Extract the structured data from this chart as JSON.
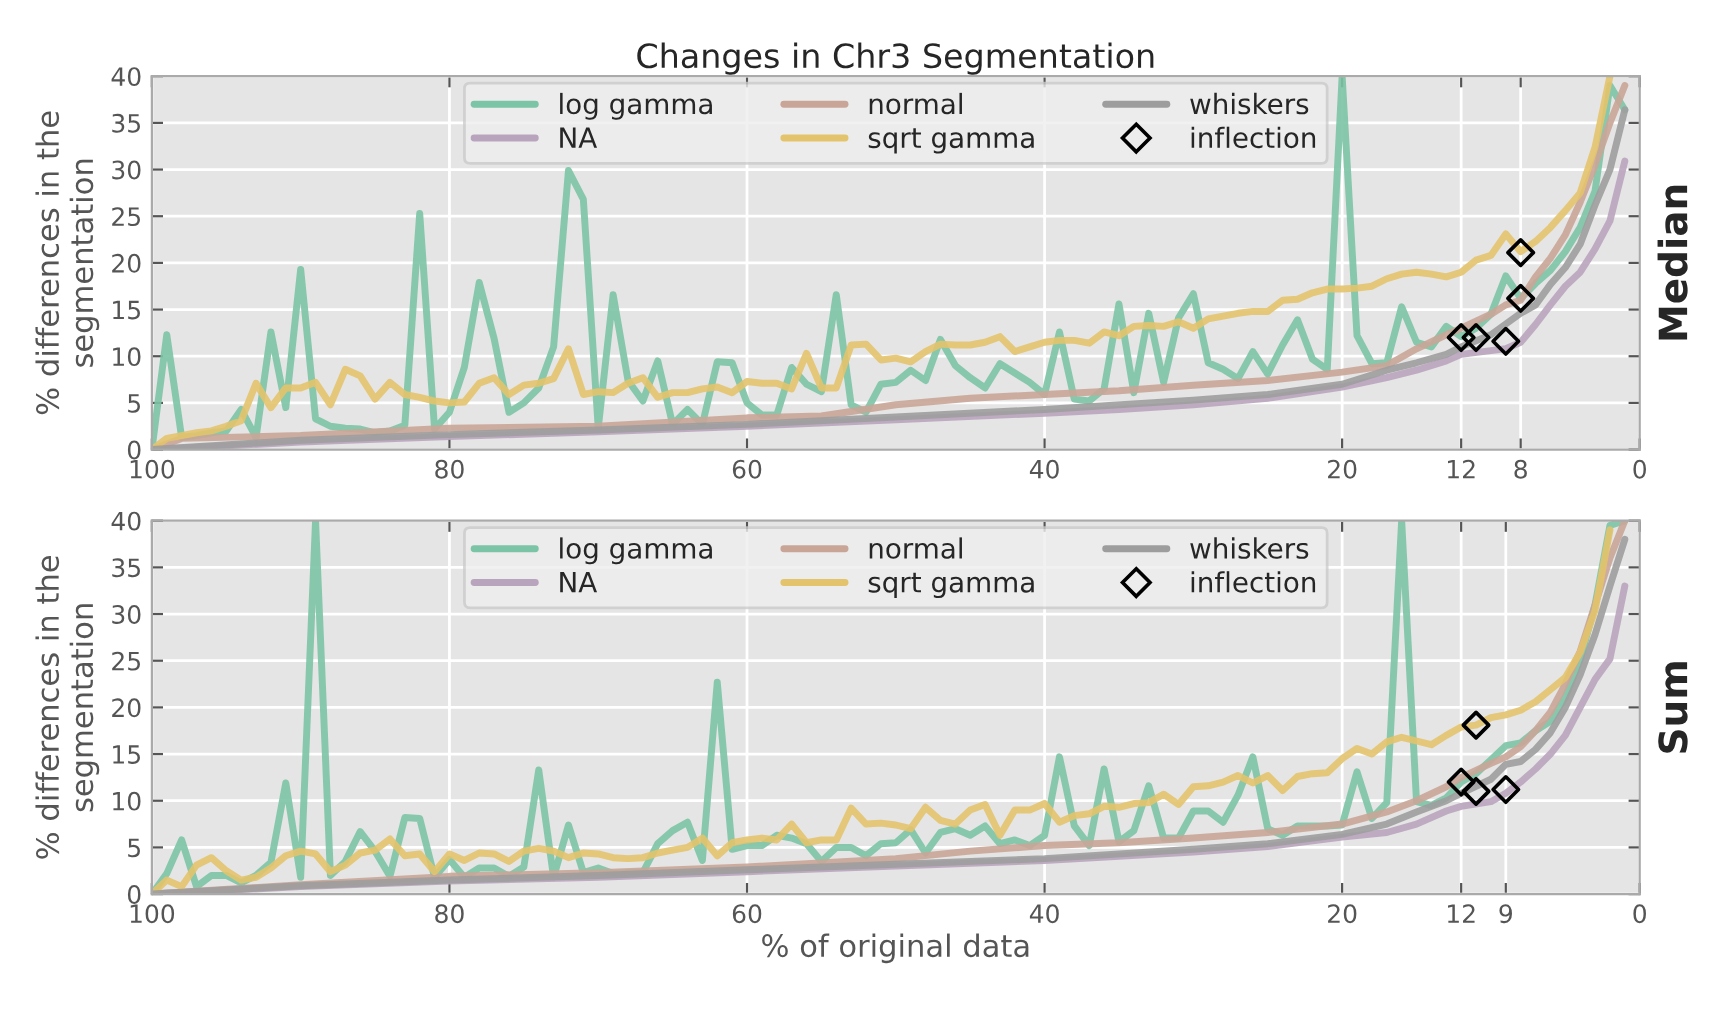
{
  "chart_data": [
    {
      "type": "line",
      "title": "Changes in Chr3 Segmentation",
      "ylabel": "% differences in the\nsegmentation",
      "annotations": [
        "Median"
      ],
      "xlim": [
        100,
        0
      ],
      "xticks": [
        100,
        80,
        60,
        40,
        20,
        12,
        8,
        0
      ],
      "ylim": [
        0,
        40
      ],
      "yticks": [
        0,
        5,
        10,
        15,
        20,
        25,
        30,
        35,
        40
      ],
      "grid": true,
      "legend": "top",
      "series": [
        {
          "name": "log gamma",
          "color": "#7cc4a6",
          "x": [
            100,
            99,
            98,
            97,
            96,
            95,
            94,
            93,
            92,
            91,
            90,
            89,
            88,
            87,
            86,
            85,
            84,
            83,
            82,
            81,
            80,
            79,
            78,
            77,
            76,
            75,
            74,
            73,
            72,
            71,
            70,
            69,
            68,
            67,
            66,
            65,
            64,
            63,
            62,
            61,
            60,
            59,
            58,
            57,
            56,
            55,
            54,
            53,
            52,
            51,
            50,
            49,
            48,
            47,
            46,
            45,
            44,
            43,
            42,
            41,
            40,
            39,
            38,
            37,
            36,
            35,
            34,
            33,
            32,
            31,
            30,
            29,
            28,
            27,
            26,
            25,
            24,
            23,
            22,
            21,
            20,
            19,
            18,
            17,
            16,
            15,
            14,
            13,
            12,
            11,
            10,
            9,
            8,
            7,
            6,
            5,
            4,
            3,
            2,
            1
          ],
          "values": [
            0,
            12.3,
            1.3,
            1.5,
            1.8,
            2,
            4.3,
            1.3,
            12.6,
            4.5,
            19.3,
            3.3,
            2.5,
            2.3,
            2.2,
            1.8,
            2,
            2.6,
            25.3,
            2.2,
            4,
            8.8,
            17.9,
            11.9,
            4,
            5,
            6.6,
            11,
            29.9,
            26.8,
            2.3,
            16.6,
            7.4,
            5.2,
            9.5,
            2.7,
            4.3,
            2.7,
            9.4,
            9.3,
            5,
            3.7,
            3.7,
            8.8,
            7,
            6.2,
            16.6,
            4.8,
            4,
            7,
            7.2,
            8.5,
            7.4,
            11.8,
            9,
            7.7,
            6.6,
            9.2,
            8.2,
            7.2,
            5.9,
            12.6,
            5.4,
            5.2,
            6.5,
            15.6,
            6.1,
            14.6,
            7.2,
            14.1,
            16.7,
            9.3,
            8.6,
            7.6,
            10.5,
            8.1,
            11.2,
            13.9,
            9.7,
            8.6,
            40,
            12.2,
            9.2,
            9.3,
            15.3,
            11.5,
            11,
            13.2,
            12.1,
            13,
            14.5,
            18.6,
            16.2,
            17.8,
            19.2,
            21.2,
            23.8,
            27.7,
            39,
            36.4
          ]
        },
        {
          "name": "NA",
          "color": "#b9a4be",
          "x": [
            100,
            90,
            80,
            70,
            60,
            50,
            40,
            35,
            30,
            25,
            20,
            17,
            15,
            13,
            12,
            10,
            9,
            8,
            7,
            6,
            5,
            4,
            3,
            2,
            1
          ],
          "values": [
            0,
            0.8,
            1.4,
            1.9,
            2.5,
            3.2,
            3.9,
            4.3,
            4.8,
            5.5,
            6.7,
            7.7,
            8.5,
            9.5,
            10.2,
            10.6,
            10.8,
            11.5,
            13.4,
            15.5,
            17.5,
            19,
            21.5,
            24.5,
            30.9
          ]
        },
        {
          "name": "normal",
          "color": "#c9a597",
          "x": [
            100,
            98,
            90,
            80,
            70,
            60,
            55,
            50,
            45,
            40,
            35,
            30,
            25,
            20,
            17,
            15,
            13,
            12,
            10,
            9,
            8,
            7,
            6,
            5,
            4,
            3,
            2,
            1
          ],
          "values": [
            0,
            1.2,
            1.5,
            2.3,
            2.5,
            3.4,
            3.6,
            4.8,
            5.5,
            5.9,
            6.3,
            6.9,
            7.4,
            8.3,
            9,
            10.8,
            12.3,
            13,
            14.5,
            15.5,
            16,
            18.5,
            20.5,
            23,
            26.5,
            30.5,
            35,
            39
          ]
        },
        {
          "name": "sqrt gamma",
          "color": "#e3c36c",
          "x": [
            100,
            99,
            98,
            97,
            96,
            95,
            94,
            93,
            92,
            91,
            90,
            89,
            88,
            87,
            86,
            85,
            84,
            83,
            82,
            81,
            80,
            79,
            78,
            77,
            76,
            75,
            74,
            73,
            72,
            71,
            70,
            69,
            68,
            67,
            66,
            65,
            64,
            63,
            62,
            61,
            60,
            59,
            58,
            57,
            56,
            55,
            54,
            53,
            52,
            51,
            50,
            49,
            48,
            47,
            46,
            45,
            44,
            43,
            42,
            41,
            40,
            39,
            38,
            37,
            36,
            35,
            34,
            33,
            32,
            31,
            30,
            29,
            28,
            27,
            26,
            25,
            24,
            23,
            22,
            21,
            20,
            19,
            18,
            17,
            16,
            15,
            14,
            13,
            12,
            11,
            10,
            9,
            8,
            7,
            6,
            5,
            4,
            3,
            2
          ],
          "values": [
            0,
            1.2,
            1.5,
            1.8,
            2,
            2.5,
            3.1,
            7.1,
            4.5,
            6.6,
            6.6,
            7.2,
            4.8,
            8.6,
            7.9,
            5.4,
            7.2,
            5.9,
            5.6,
            5.2,
            5,
            5.1,
            7.1,
            7.7,
            5.9,
            6.9,
            7.1,
            7.6,
            10.8,
            5.9,
            6.2,
            6.1,
            7.1,
            7.7,
            5.6,
            6.1,
            6.1,
            6.5,
            6.7,
            6.1,
            7.3,
            7.1,
            7.1,
            6.5,
            10.3,
            6.6,
            6.6,
            11.2,
            11.3,
            9.6,
            9.8,
            9.4,
            10.5,
            11.3,
            11.2,
            11.2,
            11.5,
            12.1,
            10.5,
            11,
            11.5,
            11.7,
            11.7,
            11.4,
            12.6,
            12.2,
            13.2,
            13.3,
            13.2,
            13.7,
            13,
            14,
            14.3,
            14.6,
            14.8,
            14.8,
            16,
            16.1,
            16.8,
            17.2,
            17.2,
            17.3,
            17.5,
            18.3,
            18.8,
            19,
            18.8,
            18.5,
            19,
            20.3,
            20.8,
            23.1,
            21.2,
            22.3,
            23.8,
            25.6,
            27.5,
            32.4,
            40
          ]
        },
        {
          "name": "whiskers",
          "color": "#9d9d9d",
          "x": [
            100,
            90,
            80,
            70,
            60,
            50,
            40,
            30,
            25,
            20,
            17,
            15,
            13,
            12,
            10,
            8,
            7,
            6,
            5,
            4,
            3,
            2,
            1
          ],
          "values": [
            0,
            1,
            1.6,
            2.1,
            2.7,
            3.5,
            4.3,
            5.3,
            5.9,
            7,
            8.5,
            9.3,
            10.2,
            11,
            12.3,
            14.6,
            15.5,
            17.7,
            19.5,
            22,
            26.2,
            30,
            36.4
          ]
        },
        {
          "name": "inflection",
          "type": "scatter",
          "marker": "diamond",
          "color": "#000000",
          "x": [
            12,
            11,
            9,
            8,
            8
          ],
          "values": [
            12,
            12,
            11.6,
            21.1,
            16.2
          ]
        }
      ]
    },
    {
      "type": "line",
      "xlabel": "% of original data",
      "ylabel": "% differences in the\nsegmentation",
      "annotations": [
        "Sum"
      ],
      "xlim": [
        100,
        0
      ],
      "xticks": [
        100,
        80,
        60,
        40,
        20,
        12,
        9,
        0
      ],
      "ylim": [
        0,
        40
      ],
      "yticks": [
        0,
        5,
        10,
        15,
        20,
        25,
        30,
        35,
        40
      ],
      "grid": true,
      "legend": "top",
      "series": [
        {
          "name": "log gamma",
          "color": "#7cc4a6",
          "x": [
            100,
            99,
            98,
            97,
            96,
            95,
            94,
            93,
            92,
            91,
            90,
            89,
            88,
            87,
            86,
            85,
            84,
            83,
            82,
            81,
            80,
            79,
            78,
            77,
            76,
            75,
            74,
            73,
            72,
            71,
            70,
            69,
            68,
            67,
            66,
            65,
            64,
            63,
            62,
            61,
            60,
            59,
            58,
            57,
            56,
            55,
            54,
            53,
            52,
            51,
            50,
            49,
            48,
            47,
            46,
            45,
            44,
            43,
            42,
            41,
            40,
            39,
            38,
            37,
            36,
            35,
            34,
            33,
            32,
            31,
            30,
            29,
            28,
            27,
            26,
            25,
            24,
            23,
            22,
            21,
            20,
            19,
            18,
            17,
            16,
            15,
            14,
            13,
            12,
            11,
            10,
            9,
            8,
            7,
            6,
            5,
            4,
            3,
            2,
            1
          ],
          "values": [
            0,
            2.2,
            5.8,
            0.8,
            2,
            2,
            1.2,
            2,
            3.4,
            11.9,
            1.8,
            40,
            2,
            3.5,
            6.7,
            4.6,
            1.9,
            8.2,
            8.1,
            1.8,
            3.7,
            1.8,
            2.8,
            2.8,
            1.9,
            2.9,
            13.3,
            1.8,
            7.4,
            2.3,
            2.8,
            2.2,
            2.3,
            2.3,
            5.4,
            6.8,
            7.7,
            3.6,
            22.7,
            4.8,
            5.2,
            5.2,
            6.3,
            6,
            5.4,
            3.5,
            5,
            5,
            4.1,
            5.4,
            5.5,
            6.9,
            4.4,
            6.6,
            7,
            6.3,
            7.3,
            5.4,
            5.8,
            5.2,
            6.3,
            14.7,
            7.3,
            5.2,
            13.4,
            5.6,
            6.8,
            11.6,
            6,
            6,
            8.9,
            8.9,
            7.7,
            10.6,
            14.7,
            7,
            6.3,
            7.3,
            7.3,
            7.3,
            7.4,
            13.1,
            8.1,
            9.8,
            40,
            9.9,
            9.5,
            10.3,
            12,
            12.9,
            14.4,
            15.9,
            16.2,
            17.5,
            18.5,
            21.1,
            25.1,
            31,
            39.5,
            40
          ]
        },
        {
          "name": "NA",
          "color": "#b9a4be",
          "x": [
            100,
            90,
            80,
            70,
            60,
            50,
            40,
            30,
            25,
            20,
            17,
            15,
            13,
            12,
            10,
            9,
            8,
            7,
            6,
            5,
            4,
            3,
            2,
            1
          ],
          "values": [
            0,
            0.8,
            1.4,
            1.8,
            2.4,
            3,
            3.6,
            4.5,
            5.1,
            6.1,
            6.6,
            7.5,
            8.9,
            9.4,
            9.9,
            10.8,
            12,
            13.4,
            15,
            17,
            20,
            23,
            25.2,
            33
          ]
        },
        {
          "name": "normal",
          "color": "#c9a597",
          "x": [
            100,
            90,
            80,
            70,
            60,
            50,
            45,
            40,
            35,
            30,
            25,
            20,
            17,
            15,
            13,
            12,
            10,
            9,
            8,
            7,
            6,
            5,
            4,
            3,
            2,
            1
          ],
          "values": [
            0,
            1,
            1.9,
            2.3,
            2.9,
            3.8,
            4.6,
            5.2,
            5.5,
            6,
            6.6,
            7.5,
            8.8,
            10,
            11.5,
            12.5,
            14,
            14.7,
            15.8,
            17.5,
            19.5,
            22.5,
            26,
            31,
            36,
            40
          ]
        },
        {
          "name": "sqrt gamma",
          "color": "#e3c36c",
          "x": [
            100,
            99,
            98,
            97,
            96,
            95,
            94,
            93,
            92,
            91,
            90,
            89,
            88,
            87,
            86,
            85,
            84,
            83,
            82,
            81,
            80,
            79,
            78,
            77,
            76,
            75,
            74,
            73,
            72,
            71,
            70,
            69,
            68,
            67,
            66,
            65,
            64,
            63,
            62,
            61,
            60,
            59,
            58,
            57,
            56,
            55,
            54,
            53,
            52,
            51,
            50,
            49,
            48,
            47,
            46,
            45,
            44,
            43,
            42,
            41,
            40,
            39,
            38,
            37,
            36,
            35,
            34,
            33,
            32,
            31,
            30,
            29,
            28,
            27,
            26,
            25,
            24,
            23,
            22,
            21,
            20,
            19,
            18,
            17,
            16,
            15,
            14,
            13,
            12,
            11,
            10,
            9,
            8,
            7,
            6,
            5,
            4,
            3,
            2
          ],
          "values": [
            0,
            1.5,
            0.8,
            3.1,
            3.9,
            2.5,
            1.5,
            1.8,
            2.8,
            4.1,
            4.6,
            4.3,
            2.4,
            3.1,
            4.4,
            4.7,
            5.9,
            4.1,
            4.3,
            2.4,
            4.3,
            3.6,
            4.4,
            4.3,
            3.5,
            4.6,
            4.9,
            4.6,
            3.9,
            4.4,
            4.3,
            3.9,
            3.8,
            3.9,
            4.4,
            4.7,
            5,
            6,
            4.1,
            5.5,
            5.8,
            6,
            5.8,
            7.5,
            5.5,
            5.8,
            5.8,
            9.2,
            7.5,
            7.6,
            7.4,
            7,
            9.3,
            7.9,
            7.5,
            9,
            9.6,
            6.3,
            9,
            9,
            9.7,
            7.7,
            8.4,
            8.6,
            9.4,
            9.3,
            9.7,
            9.8,
            10.7,
            9.6,
            11.5,
            11.6,
            12,
            12.7,
            11.9,
            12.7,
            11.1,
            12.6,
            12.9,
            13,
            14.5,
            15.6,
            15,
            16.3,
            16.8,
            16.4,
            16,
            17,
            17.9,
            18.1,
            18.9,
            19.2,
            19.7,
            20.6,
            21.9,
            23.2,
            25.9,
            30.4,
            39
          ]
        },
        {
          "name": "whiskers",
          "color": "#9d9d9d",
          "x": [
            100,
            90,
            80,
            70,
            60,
            50,
            40,
            30,
            25,
            20,
            17,
            15,
            13,
            12,
            10,
            9,
            8,
            7,
            6,
            5,
            4,
            3,
            2,
            1
          ],
          "values": [
            0,
            0.9,
            1.5,
            2,
            2.6,
            3.2,
            3.8,
            4.8,
            5.4,
            6.4,
            7.5,
            8.8,
            10,
            10.8,
            12.3,
            13.9,
            14.2,
            15.5,
            17.3,
            20,
            23.5,
            27.8,
            33,
            38
          ]
        },
        {
          "name": "inflection",
          "type": "scatter",
          "marker": "diamond",
          "color": "#000000",
          "x": [
            12,
            11,
            11,
            9
          ],
          "values": [
            12,
            11,
            18.1,
            11.2
          ]
        }
      ]
    }
  ]
}
